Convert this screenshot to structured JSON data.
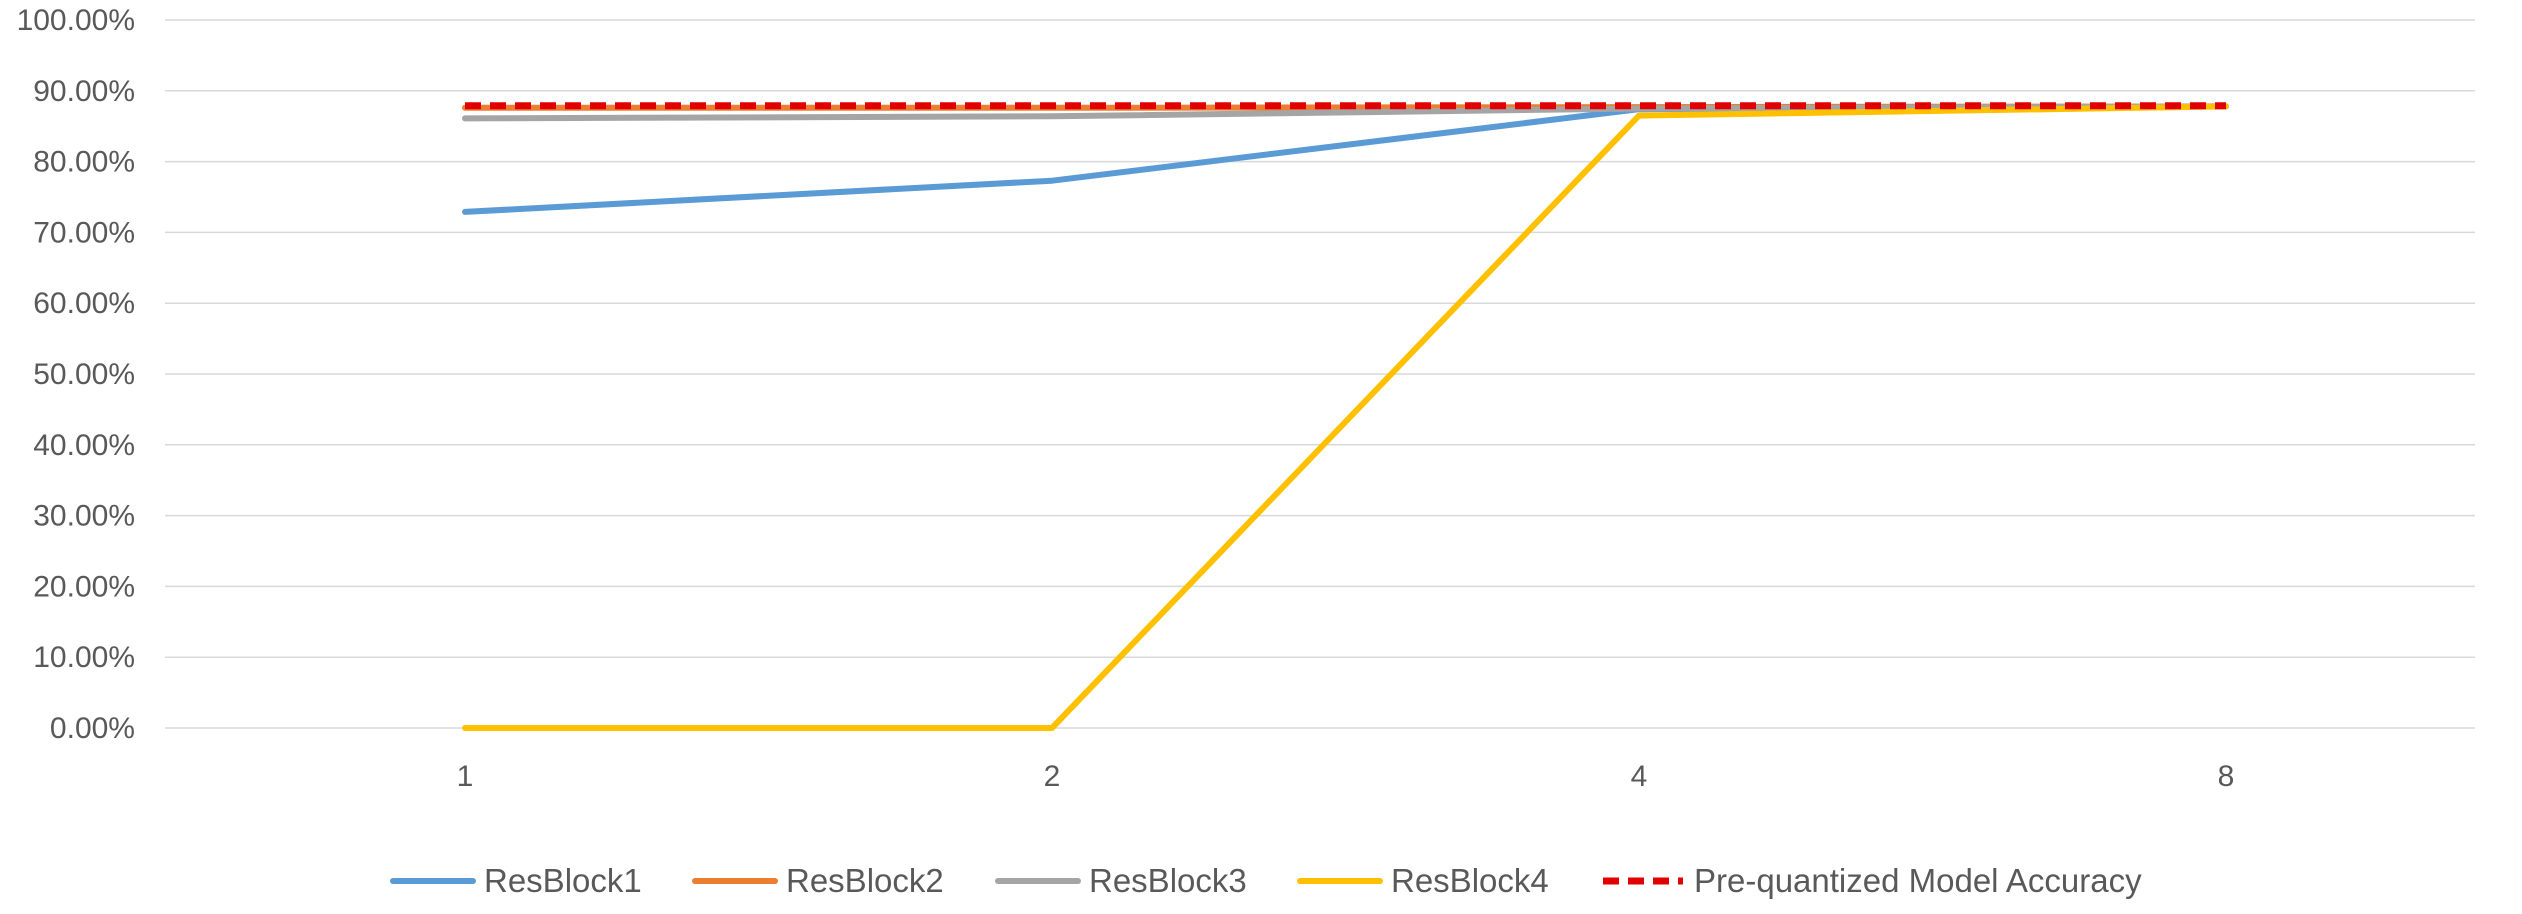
{
  "chart_data": {
    "type": "line",
    "title": "",
    "xlabel": "",
    "ylabel": "",
    "categories": [
      "1",
      "2",
      "4",
      "8"
    ],
    "ylim": [
      0,
      100
    ],
    "y_tick_step": 10,
    "y_tick_labels": [
      "0.00%",
      "10.00%",
      "20.00%",
      "30.00%",
      "40.00%",
      "50.00%",
      "60.00%",
      "70.00%",
      "80.00%",
      "90.00%",
      "100.00%"
    ],
    "grid": true,
    "legend_position": "bottom",
    "series": [
      {
        "name": "ResBlock1",
        "color": "#5B9BD5",
        "dash": false,
        "values": [
          72.9,
          77.3,
          87.4,
          87.8
        ]
      },
      {
        "name": "ResBlock2",
        "color": "#ED7D31",
        "dash": false,
        "values": [
          87.6,
          87.6,
          87.7,
          87.8
        ]
      },
      {
        "name": "ResBlock3",
        "color": "#A5A5A5",
        "dash": false,
        "values": [
          86.1,
          86.4,
          87.5,
          87.8
        ]
      },
      {
        "name": "ResBlock4",
        "color": "#FFC000",
        "dash": false,
        "values": [
          0.0,
          0.0,
          86.5,
          87.8
        ]
      },
      {
        "name": "Pre-quantized Model Accuracy",
        "color": "#E00000",
        "dash": true,
        "values": [
          87.9,
          87.9,
          87.9,
          87.9
        ]
      }
    ]
  }
}
